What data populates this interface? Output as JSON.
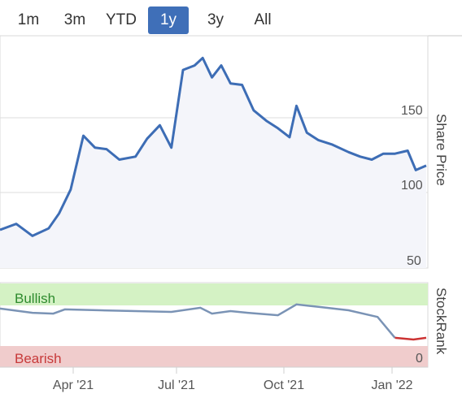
{
  "range_tabs": [
    "1m",
    "3m",
    "YTD",
    "1y",
    "3y",
    "All"
  ],
  "active_range": "1y",
  "price_chart": {
    "ylabel": "Share Price",
    "y_ticks": [
      "150",
      "100",
      "50"
    ]
  },
  "rank_chart": {
    "ylabel": "StockRank",
    "bullish_label": "Bullish",
    "bearish_label": "Bearish",
    "zero_label": "0"
  },
  "x_ticks": [
    "Apr '21",
    "Jul '21",
    "Oct '21",
    "Jan '22"
  ],
  "colors": {
    "accent": "#3f6fb8",
    "price_line": "#3d6db5",
    "price_fill": "#f4f5fa",
    "bullish_band": "#d4f2c4",
    "bullish_text": "#2e8b2e",
    "bearish_band": "#f0cccc",
    "bearish_text": "#c73a3a",
    "rank_line": "#7a93b5",
    "rank_bear_line": "#cc3333"
  },
  "chart_data": [
    {
      "type": "line",
      "ylabel": "Share Price",
      "ylim": [
        45,
        195
      ],
      "x_range": [
        "2021-01-18",
        "2022-01-21"
      ],
      "series": [
        {
          "values_by_date": [
            [
              "2021-01-18",
              75
            ],
            [
              "2021-02-01",
              79
            ],
            [
              "2021-02-15",
              71
            ],
            [
              "2021-03-01",
              76
            ],
            [
              "2021-03-10",
              86
            ],
            [
              "2021-03-20",
              102
            ],
            [
              "2021-03-31",
              138
            ],
            [
              "2021-04-10",
              130
            ],
            [
              "2021-04-20",
              129
            ],
            [
              "2021-05-01",
              122
            ],
            [
              "2021-05-15",
              124
            ],
            [
              "2021-05-25",
              136
            ],
            [
              "2021-06-05",
              145
            ],
            [
              "2021-06-15",
              130
            ],
            [
              "2021-06-25",
              182
            ],
            [
              "2021-07-05",
              185
            ],
            [
              "2021-07-12",
              190
            ],
            [
              "2021-07-20",
              177
            ],
            [
              "2021-07-28",
              185
            ],
            [
              "2021-08-05",
              173
            ],
            [
              "2021-08-15",
              172
            ],
            [
              "2021-08-25",
              155
            ],
            [
              "2021-09-05",
              148
            ],
            [
              "2021-09-15",
              143
            ],
            [
              "2021-09-25",
              137
            ],
            [
              "2021-10-01",
              158
            ],
            [
              "2021-10-10",
              140
            ],
            [
              "2021-10-20",
              135
            ],
            [
              "2021-11-01",
              132
            ],
            [
              "2021-11-15",
              127
            ],
            [
              "2021-11-25",
              124
            ],
            [
              "2021-12-05",
              122
            ],
            [
              "2021-12-15",
              126
            ],
            [
              "2021-12-25",
              126
            ],
            [
              "2022-01-05",
              128
            ],
            [
              "2022-01-12",
              115
            ],
            [
              "2022-01-21",
              118
            ]
          ]
        }
      ]
    },
    {
      "type": "line",
      "ylabel": "StockRank",
      "series": [
        {
          "values_by_date": [
            [
              "2021-01-18",
              70
            ],
            [
              "2021-02-15",
              65
            ],
            [
              "2021-03-05",
              64
            ],
            [
              "2021-03-15",
              69
            ],
            [
              "2021-04-15",
              68
            ],
            [
              "2021-05-15",
              67
            ],
            [
              "2021-06-15",
              66
            ],
            [
              "2021-07-10",
              71
            ],
            [
              "2021-07-20",
              64
            ],
            [
              "2021-08-05",
              67
            ],
            [
              "2021-08-20",
              65
            ],
            [
              "2021-09-15",
              62
            ],
            [
              "2021-10-01",
              75
            ],
            [
              "2021-10-20",
              72
            ],
            [
              "2021-11-15",
              68
            ],
            [
              "2021-12-10",
              60
            ],
            [
              "2021-12-25",
              35
            ],
            [
              "2022-01-10",
              33
            ],
            [
              "2022-01-21",
              35
            ]
          ]
        }
      ]
    }
  ]
}
